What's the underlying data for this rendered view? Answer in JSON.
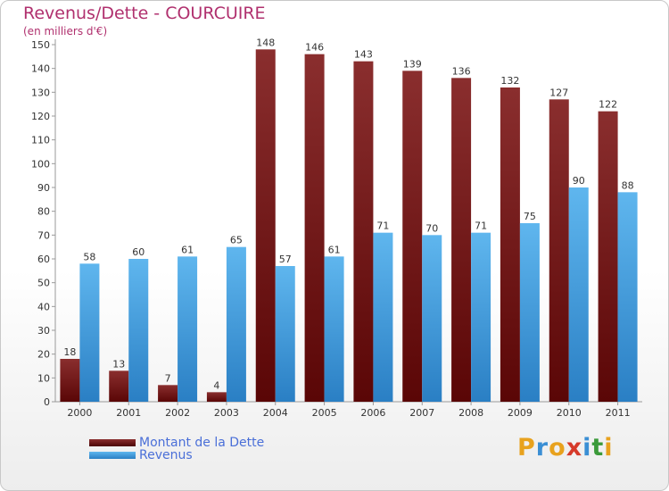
{
  "header": {
    "title": "Revenus/Dette - COURCUIRE",
    "subtitle": "(en milliers d'€)"
  },
  "chart_data": {
    "type": "bar",
    "categories": [
      "2000",
      "2001",
      "2002",
      "2003",
      "2004",
      "2005",
      "2006",
      "2007",
      "2008",
      "2009",
      "2010",
      "2011"
    ],
    "series": [
      {
        "name": "Montant de la Dette",
        "color": "#7a1a1a",
        "values": [
          18,
          13,
          7,
          4,
          148,
          146,
          143,
          139,
          136,
          132,
          127,
          122
        ]
      },
      {
        "name": "Revenus",
        "color": "#3a9ee0",
        "values": [
          58,
          60,
          61,
          65,
          57,
          61,
          71,
          70,
          71,
          75,
          90,
          88
        ]
      }
    ],
    "yticks": [
      0,
      10,
      20,
      30,
      40,
      50,
      60,
      70,
      80,
      90,
      100,
      110,
      120,
      130,
      140,
      150
    ],
    "ylim": [
      0,
      150
    ],
    "grid": false,
    "legend_position": "bottom-left"
  },
  "logo": {
    "letters": [
      "P",
      "r",
      "o",
      "x",
      "i",
      "t",
      "i"
    ],
    "colors": [
      "#e8a21e",
      "#3b8fd4",
      "#e8a21e",
      "#d63a2a",
      "#3b8fd4",
      "#3b9a3a",
      "#e8a21e"
    ]
  }
}
